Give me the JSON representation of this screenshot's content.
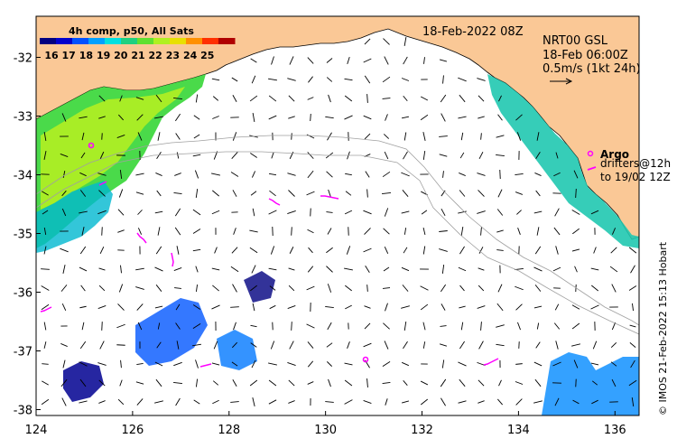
{
  "map": {
    "lon_range": [
      124,
      136.5
    ],
    "lat_range": [
      -38.1,
      -31.3
    ],
    "x_ticks": [
      124,
      126,
      128,
      130,
      132,
      134,
      136
    ],
    "y_ticks": [
      -32,
      -33,
      -34,
      -35,
      -36,
      -37,
      -38
    ],
    "x_tick_labels": [
      "124",
      "126",
      "128",
      "130",
      "132",
      "134",
      "136"
    ],
    "y_tick_labels": [
      "-32",
      "-33",
      "-34",
      "-35",
      "-36",
      "-37",
      "-38"
    ],
    "land_color": "#fac896",
    "ocean_color": "#ffffff"
  },
  "header": {
    "datetime": "18-Feb-2022 08Z"
  },
  "legend": {
    "title": "4h comp, p50, All Sats",
    "ticks": [
      "16",
      "17",
      "18",
      "19",
      "20",
      "21",
      "22",
      "23",
      "24",
      "25"
    ],
    "colors": [
      "#000080",
      "#0000cd",
      "#0050ff",
      "#00a0ff",
      "#00e0e0",
      "#20d080",
      "#60e030",
      "#b0f020",
      "#e8e000",
      "#ff9000",
      "#ff3000",
      "#b00000"
    ]
  },
  "current_info": {
    "line1": "NRT00 GSL",
    "line2": "18-Feb 06:00Z",
    "line3": "0.5m/s (1kt 24h)"
  },
  "argo": {
    "label": "Argo",
    "color": "#ff00ff"
  },
  "drifters": {
    "line1": "drifters@12h",
    "line2": "to 19/02 12Z"
  },
  "credit": "© IMOS 21-Feb-2022 15:13 Hobart"
}
